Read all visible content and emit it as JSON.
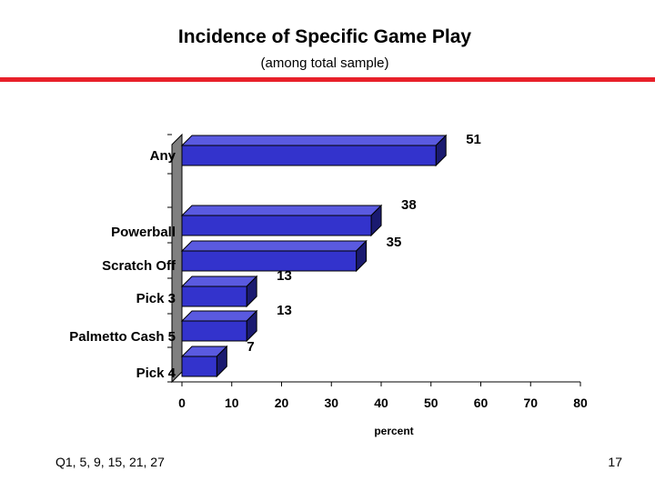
{
  "page": {
    "title": "Incidence of Specific Game Play",
    "subtitle": "(among total sample)",
    "footer_left": "Q1, 5, 9, 15, 21, 27",
    "page_number": "17"
  },
  "colors": {
    "accent_line": "#e8202a",
    "bar_front": "#3333cc",
    "bar_top": "#5a5ae0",
    "bar_side": "#1a1a70",
    "wall": "#808080"
  },
  "chart_data": {
    "type": "bar",
    "orientation": "horizontal",
    "style": "3d",
    "title": "Incidence of Specific Game Play",
    "subtitle": "(among total sample)",
    "categories": [
      "Any",
      "Powerball",
      "Scratch Off",
      "Pick 3",
      "Palmetto Cash 5",
      "Pick 4"
    ],
    "values": [
      51,
      38,
      35,
      13,
      13,
      7
    ],
    "value_labels": [
      "51",
      "38",
      "35",
      "13",
      "13",
      "7"
    ],
    "xlabel": "percent",
    "ylabel": "",
    "xlim": [
      0,
      80
    ],
    "xticks": [
      "0",
      "10",
      "20",
      "30",
      "40",
      "50",
      "60",
      "70",
      "80"
    ],
    "grid": false,
    "legend": "none"
  }
}
